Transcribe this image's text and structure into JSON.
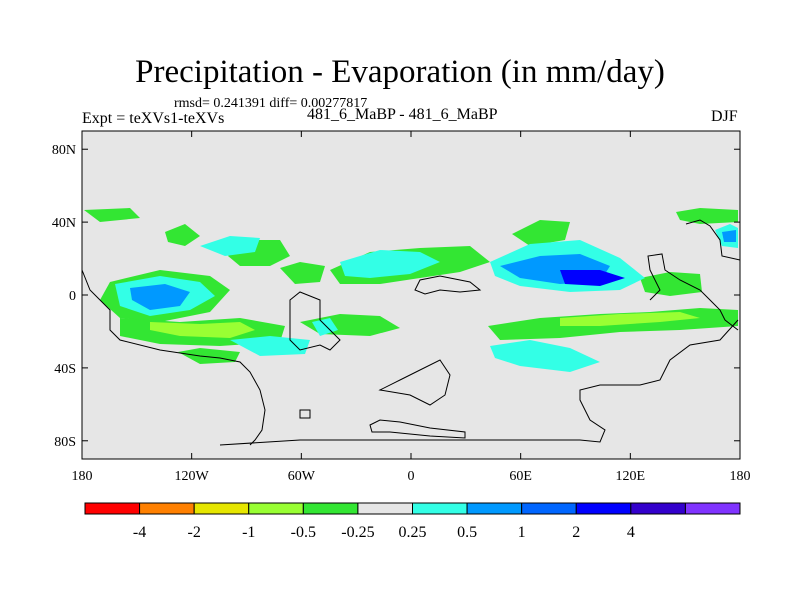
{
  "title": "Precipitation - Evaporation (in mm/day)",
  "stats": "rmsd= 0.241391 diff= 0.00277817",
  "experiment": "Expt = teXVs1-teXVs",
  "case": "481_6_MaBP - 481_6_MaBP",
  "season": "DJF",
  "map": {
    "projection": "cylindrical equidistant",
    "lon_range": [
      -180,
      180
    ],
    "lat_range": [
      -90,
      90
    ],
    "background": "#e6e6e6",
    "lat_ticks": [
      "80N",
      "40N",
      "0",
      "40S",
      "80S"
    ],
    "lon_ticks": [
      "180",
      "120W",
      "60W",
      "0",
      "60E",
      "120E",
      "180"
    ]
  },
  "colorbar": {
    "colors": [
      "#ff0000",
      "#ff8000",
      "#e6e600",
      "#99ff33",
      "#33e633",
      "#e6e6e6",
      "#33ffe6",
      "#0099ff",
      "#0066ff",
      "#0000ff",
      "#3300cc",
      "#8033ff"
    ],
    "labels": [
      "-4",
      "-2",
      "-1",
      "-0.5",
      "-0.25",
      "0.25",
      "0.5",
      "1",
      "2",
      "4"
    ]
  }
}
